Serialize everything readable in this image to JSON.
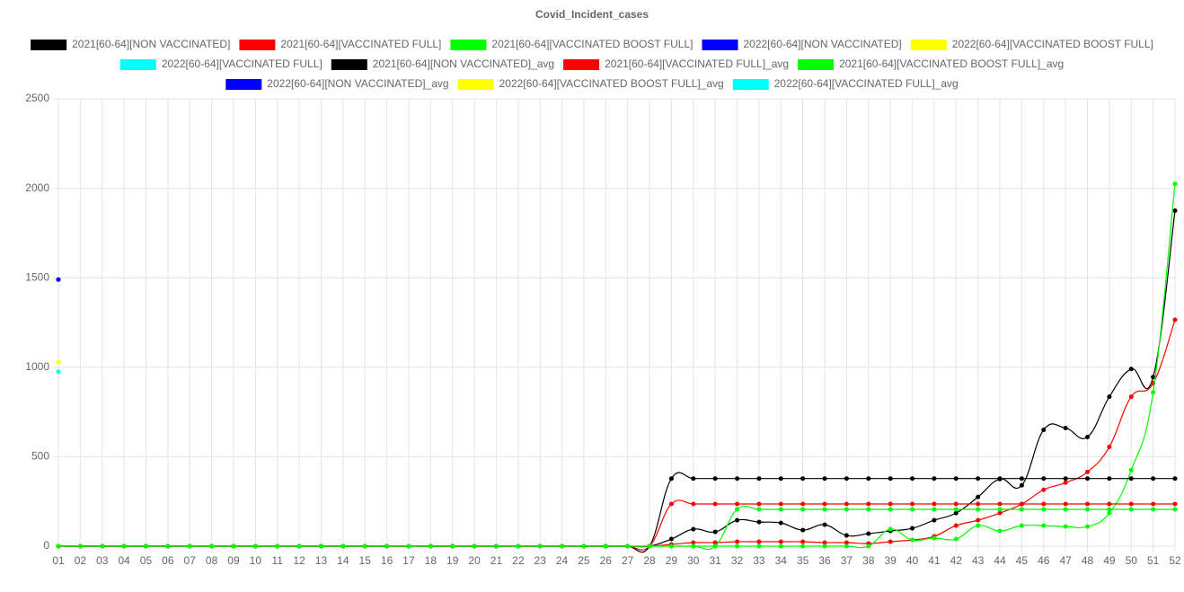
{
  "chart_data": {
    "type": "line",
    "title": "Covid_Incident_cases",
    "categories": [
      "01",
      "02",
      "03",
      "04",
      "05",
      "06",
      "07",
      "08",
      "09",
      "10",
      "11",
      "12",
      "13",
      "14",
      "15",
      "16",
      "17",
      "18",
      "19",
      "20",
      "21",
      "22",
      "23",
      "24",
      "25",
      "26",
      "27",
      "28",
      "29",
      "30",
      "31",
      "32",
      "33",
      "34",
      "35",
      "36",
      "37",
      "38",
      "39",
      "40",
      "41",
      "42",
      "43",
      "44",
      "45",
      "46",
      "47",
      "48",
      "49",
      "50",
      "51",
      "52"
    ],
    "ylim": [
      0,
      2500
    ],
    "yticks": [
      0,
      500,
      1000,
      1500,
      2000,
      2500
    ],
    "grid": true,
    "legend": "top",
    "series": [
      {
        "name": "2021[60-64][NON VACCINATED]",
        "color": "#000000",
        "values": [
          0,
          0,
          0,
          0,
          0,
          0,
          0,
          0,
          0,
          0,
          0,
          0,
          0,
          0,
          0,
          0,
          0,
          0,
          0,
          0,
          0,
          0,
          0,
          0,
          0,
          0,
          0,
          0,
          40,
          95,
          80,
          145,
          135,
          130,
          90,
          120,
          60,
          70,
          85,
          100,
          145,
          185,
          275,
          375,
          340,
          650,
          660,
          610,
          835,
          990,
          945,
          1875
        ]
      },
      {
        "name": "2021[60-64][VACCINATED FULL]",
        "color": "#ff0000",
        "values": [
          0,
          0,
          0,
          0,
          0,
          0,
          0,
          0,
          0,
          0,
          0,
          0,
          0,
          0,
          0,
          0,
          0,
          0,
          0,
          0,
          0,
          0,
          0,
          0,
          0,
          0,
          0,
          0,
          10,
          20,
          20,
          25,
          25,
          25,
          25,
          20,
          20,
          15,
          25,
          35,
          55,
          115,
          145,
          185,
          235,
          315,
          355,
          415,
          555,
          835,
          910,
          1265
        ]
      },
      {
        "name": "2021[60-64][VACCINATED BOOST FULL]",
        "color": "#00ff00",
        "values": [
          0,
          0,
          0,
          0,
          0,
          0,
          0,
          0,
          0,
          0,
          0,
          0,
          0,
          0,
          0,
          0,
          0,
          0,
          0,
          0,
          0,
          0,
          0,
          0,
          0,
          0,
          0,
          0,
          0,
          0,
          0,
          0,
          0,
          0,
          0,
          0,
          0,
          0,
          95,
          35,
          45,
          40,
          115,
          85,
          115,
          115,
          110,
          110,
          185,
          425,
          860,
          2025
        ]
      },
      {
        "name": "2022[60-64][NON VACCINATED]",
        "color": "#0000ff",
        "values": [
          1490,
          null,
          null,
          null,
          null,
          null,
          null,
          null,
          null,
          null,
          null,
          null,
          null,
          null,
          null,
          null,
          null,
          null,
          null,
          null,
          null,
          null,
          null,
          null,
          null,
          null,
          null,
          null,
          null,
          null,
          null,
          null,
          null,
          null,
          null,
          null,
          null,
          null,
          null,
          null,
          null,
          null,
          null,
          null,
          null,
          null,
          null,
          null,
          null,
          null,
          null,
          null
        ]
      },
      {
        "name": "2022[60-64][VACCINATED BOOST FULL]",
        "color": "#ffff00",
        "values": [
          1030,
          null,
          null,
          null,
          null,
          null,
          null,
          null,
          null,
          null,
          null,
          null,
          null,
          null,
          null,
          null,
          null,
          null,
          null,
          null,
          null,
          null,
          null,
          null,
          null,
          null,
          null,
          null,
          null,
          null,
          null,
          null,
          null,
          null,
          null,
          null,
          null,
          null,
          null,
          null,
          null,
          null,
          null,
          null,
          null,
          null,
          null,
          null,
          null,
          null,
          null,
          null
        ]
      },
      {
        "name": "2022[60-64][VACCINATED FULL]",
        "color": "#00ffff",
        "values": [
          975,
          null,
          null,
          null,
          null,
          null,
          null,
          null,
          null,
          null,
          null,
          null,
          null,
          null,
          null,
          null,
          null,
          null,
          null,
          null,
          null,
          null,
          null,
          null,
          null,
          null,
          null,
          null,
          null,
          null,
          null,
          null,
          null,
          null,
          null,
          null,
          null,
          null,
          null,
          null,
          null,
          null,
          null,
          null,
          null,
          null,
          null,
          null,
          null,
          null,
          null,
          null
        ]
      },
      {
        "name": "2021[60-64][NON VACCINATED]_avg",
        "color": "#000000",
        "values": [
          0,
          0,
          0,
          0,
          0,
          0,
          0,
          0,
          0,
          0,
          0,
          0,
          0,
          0,
          0,
          0,
          0,
          0,
          0,
          0,
          0,
          0,
          0,
          0,
          0,
          0,
          0,
          0,
          378,
          378,
          378,
          378,
          378,
          378,
          378,
          378,
          378,
          378,
          378,
          378,
          378,
          378,
          378,
          378,
          378,
          378,
          378,
          378,
          378,
          378,
          378,
          378
        ]
      },
      {
        "name": "2021[60-64][VACCINATED FULL]_avg",
        "color": "#ff0000",
        "values": [
          0,
          0,
          0,
          0,
          0,
          0,
          0,
          0,
          0,
          0,
          0,
          0,
          0,
          0,
          0,
          0,
          0,
          0,
          0,
          0,
          0,
          0,
          0,
          0,
          0,
          0,
          0,
          0,
          236,
          236,
          236,
          236,
          236,
          236,
          236,
          236,
          236,
          236,
          236,
          236,
          236,
          236,
          236,
          236,
          236,
          236,
          236,
          236,
          236,
          236,
          236,
          236
        ]
      },
      {
        "name": "2021[60-64][VACCINATED BOOST FULL]_avg",
        "color": "#00ff00",
        "values": [
          0,
          0,
          0,
          0,
          0,
          0,
          0,
          0,
          0,
          0,
          0,
          0,
          0,
          0,
          0,
          0,
          0,
          0,
          0,
          0,
          0,
          0,
          0,
          0,
          0,
          0,
          0,
          0,
          0,
          0,
          0,
          206,
          206,
          206,
          206,
          206,
          206,
          206,
          206,
          206,
          206,
          206,
          206,
          206,
          206,
          206,
          206,
          206,
          206,
          206,
          206,
          206
        ]
      },
      {
        "name": "2022[60-64][NON VACCINATED]_avg",
        "color": "#0000ff",
        "values": [
          1490,
          null,
          null,
          null,
          null,
          null,
          null,
          null,
          null,
          null,
          null,
          null,
          null,
          null,
          null,
          null,
          null,
          null,
          null,
          null,
          null,
          null,
          null,
          null,
          null,
          null,
          null,
          null,
          null,
          null,
          null,
          null,
          null,
          null,
          null,
          null,
          null,
          null,
          null,
          null,
          null,
          null,
          null,
          null,
          null,
          null,
          null,
          null,
          null,
          null,
          null,
          null
        ]
      },
      {
        "name": "2022[60-64][VACCINATED BOOST FULL]_avg",
        "color": "#ffff00",
        "values": [
          1030,
          null,
          null,
          null,
          null,
          null,
          null,
          null,
          null,
          null,
          null,
          null,
          null,
          null,
          null,
          null,
          null,
          null,
          null,
          null,
          null,
          null,
          null,
          null,
          null,
          null,
          null,
          null,
          null,
          null,
          null,
          null,
          null,
          null,
          null,
          null,
          null,
          null,
          null,
          null,
          null,
          null,
          null,
          null,
          null,
          null,
          null,
          null,
          null,
          null,
          null,
          null
        ]
      },
      {
        "name": "2022[60-64][VACCINATED FULL]_avg",
        "color": "#00ffff",
        "values": [
          975,
          null,
          null,
          null,
          null,
          null,
          null,
          null,
          null,
          null,
          null,
          null,
          null,
          null,
          null,
          null,
          null,
          null,
          null,
          null,
          null,
          null,
          null,
          null,
          null,
          null,
          null,
          null,
          null,
          null,
          null,
          null,
          null,
          null,
          null,
          null,
          null,
          null,
          null,
          null,
          null,
          null,
          null,
          null,
          null,
          null,
          null,
          null,
          null,
          null,
          null,
          null
        ]
      }
    ]
  }
}
